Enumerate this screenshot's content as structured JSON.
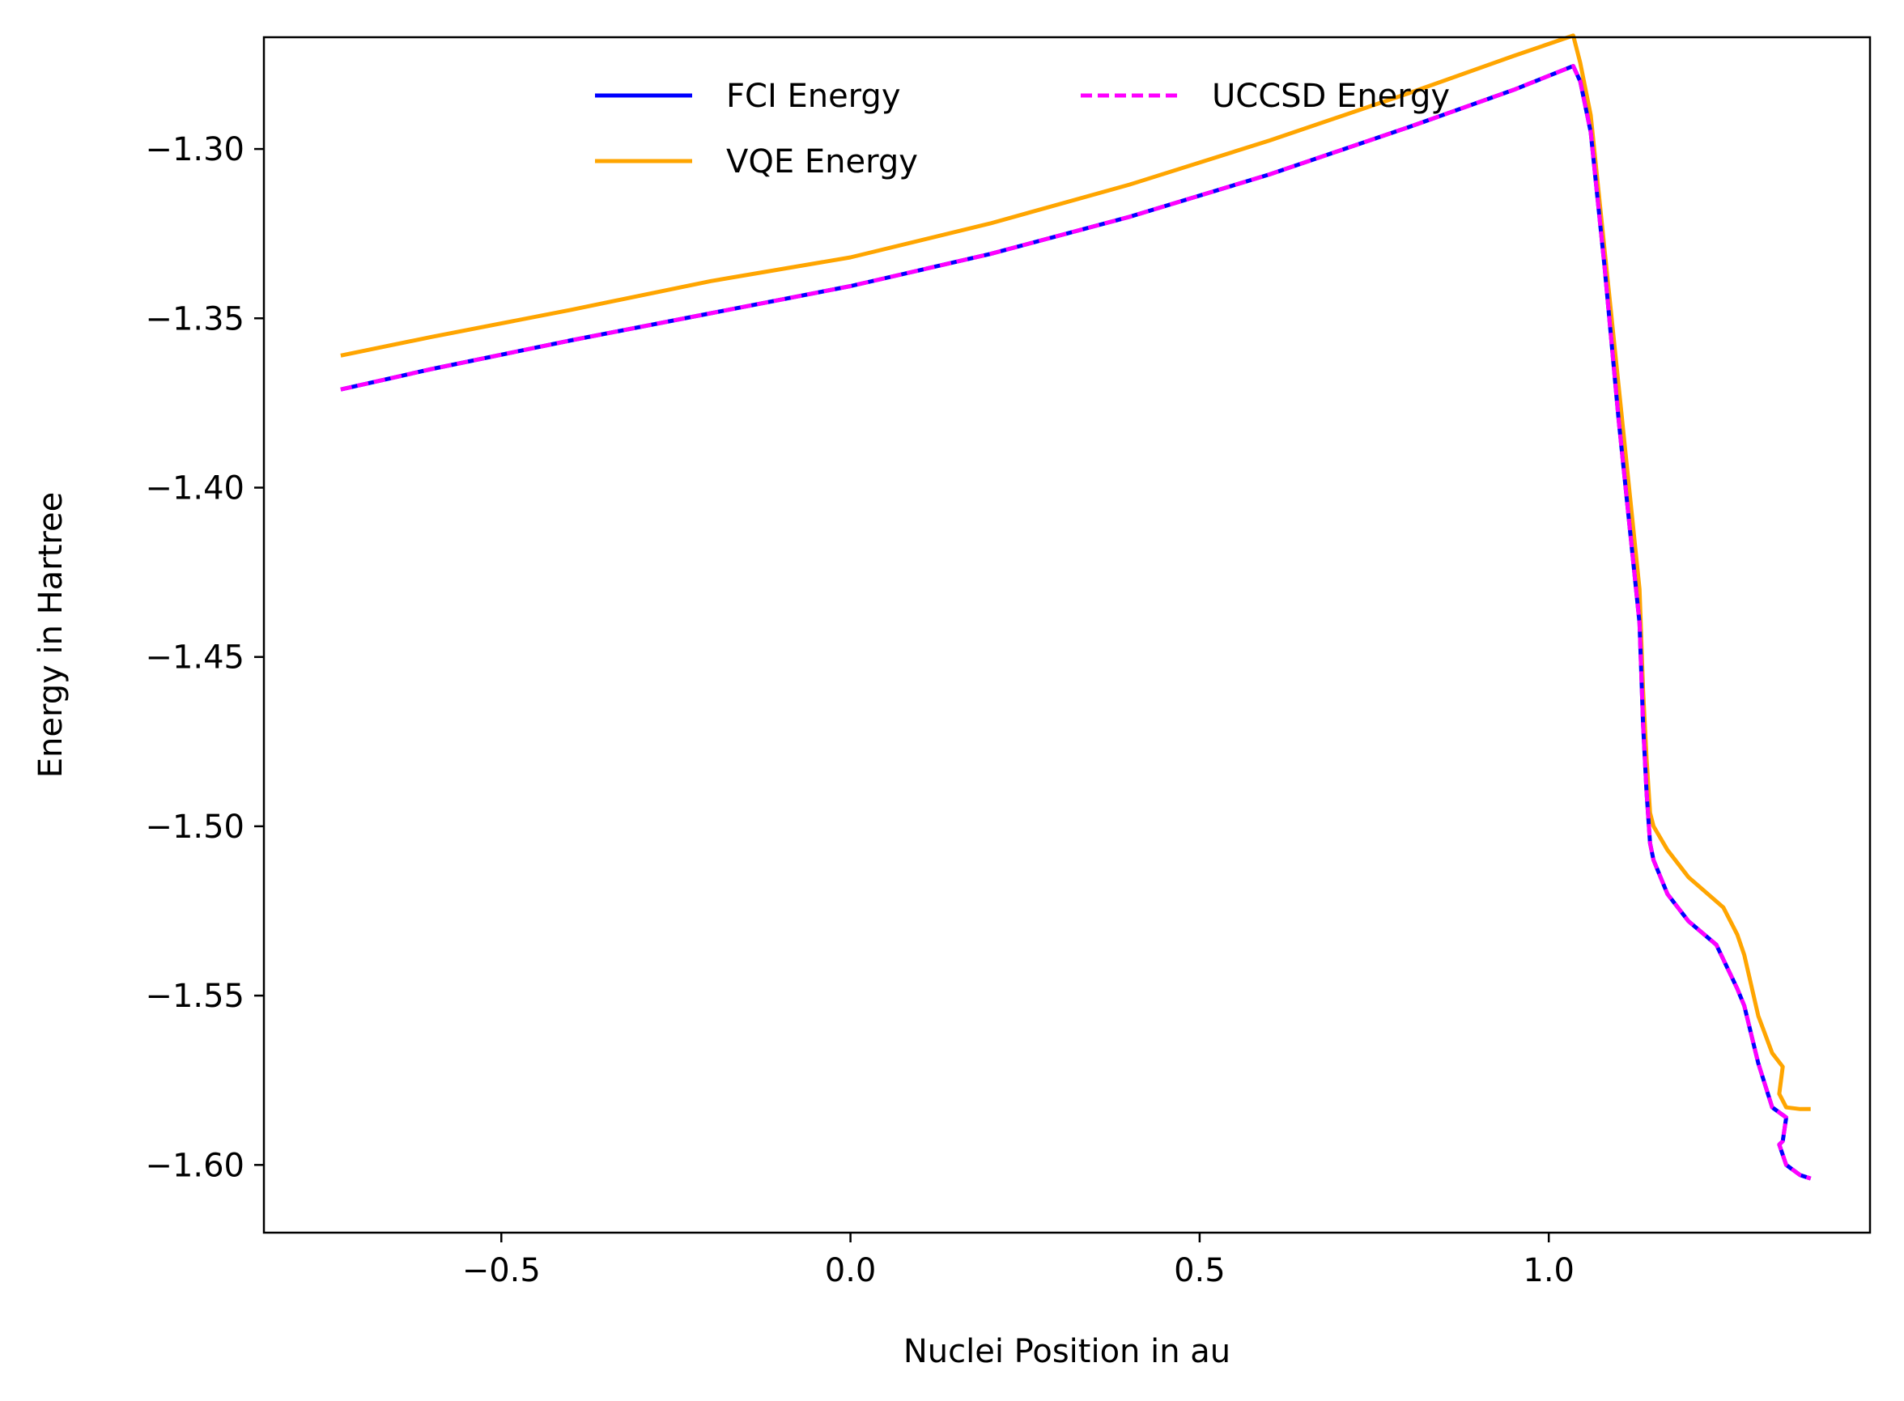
{
  "chart_data": {
    "type": "line",
    "title": "",
    "xlabel": "Nuclei Position in au",
    "ylabel": "Energy in Hartree",
    "xlim": [
      -0.84,
      1.46
    ],
    "ylim": [
      -1.62,
      -1.267
    ],
    "xticks": [
      {
        "value": -0.5,
        "label": "−0.5"
      },
      {
        "value": 0.0,
        "label": "0.0"
      },
      {
        "value": 0.5,
        "label": "0.5"
      },
      {
        "value": 1.0,
        "label": "1.0"
      }
    ],
    "yticks": [
      {
        "value": -1.3,
        "label": "−1.30"
      },
      {
        "value": -1.35,
        "label": "−1.35"
      },
      {
        "value": -1.4,
        "label": "−1.40"
      },
      {
        "value": -1.45,
        "label": "−1.45"
      },
      {
        "value": -1.5,
        "label": "−1.50"
      },
      {
        "value": -1.55,
        "label": "−1.55"
      },
      {
        "value": -1.6,
        "label": "−1.60"
      }
    ],
    "grid": false,
    "legend": "upper-center",
    "series": [
      {
        "name": "FCI Energy",
        "color": "#0000ff",
        "style": "solid",
        "points": [
          [
            -0.73,
            -1.371
          ],
          [
            -0.6,
            -1.365
          ],
          [
            -0.4,
            -1.3565
          ],
          [
            -0.2,
            -1.3485
          ],
          [
            0.0,
            -1.3405
          ],
          [
            0.2,
            -1.331
          ],
          [
            0.4,
            -1.32
          ],
          [
            0.6,
            -1.3075
          ],
          [
            0.8,
            -1.2935
          ],
          [
            0.95,
            -1.2825
          ],
          [
            1.035,
            -1.2755
          ],
          [
            1.045,
            -1.28
          ],
          [
            1.06,
            -1.295
          ],
          [
            1.08,
            -1.335
          ],
          [
            1.1,
            -1.38
          ],
          [
            1.12,
            -1.42
          ],
          [
            1.13,
            -1.44
          ],
          [
            1.135,
            -1.47
          ],
          [
            1.14,
            -1.49
          ],
          [
            1.145,
            -1.505
          ],
          [
            1.15,
            -1.51
          ],
          [
            1.17,
            -1.52
          ],
          [
            1.2,
            -1.528
          ],
          [
            1.24,
            -1.535
          ],
          [
            1.27,
            -1.548
          ],
          [
            1.28,
            -1.553
          ],
          [
            1.3,
            -1.57
          ],
          [
            1.32,
            -1.583
          ],
          [
            1.34,
            -1.586
          ],
          [
            1.335,
            -1.593
          ],
          [
            1.33,
            -1.594
          ],
          [
            1.34,
            -1.6
          ],
          [
            1.36,
            -1.603
          ],
          [
            1.375,
            -1.604
          ]
        ]
      },
      {
        "name": "UCCSD Energy",
        "color": "#ff00ff",
        "style": "dashed",
        "points": [
          [
            -0.73,
            -1.371
          ],
          [
            -0.6,
            -1.365
          ],
          [
            -0.4,
            -1.3565
          ],
          [
            -0.2,
            -1.3485
          ],
          [
            0.0,
            -1.3405
          ],
          [
            0.2,
            -1.331
          ],
          [
            0.4,
            -1.32
          ],
          [
            0.6,
            -1.3075
          ],
          [
            0.8,
            -1.2935
          ],
          [
            0.95,
            -1.2825
          ],
          [
            1.035,
            -1.2755
          ],
          [
            1.045,
            -1.28
          ],
          [
            1.06,
            -1.295
          ],
          [
            1.08,
            -1.335
          ],
          [
            1.1,
            -1.38
          ],
          [
            1.12,
            -1.42
          ],
          [
            1.13,
            -1.44
          ],
          [
            1.135,
            -1.47
          ],
          [
            1.14,
            -1.49
          ],
          [
            1.145,
            -1.505
          ],
          [
            1.15,
            -1.51
          ],
          [
            1.17,
            -1.52
          ],
          [
            1.2,
            -1.528
          ],
          [
            1.24,
            -1.535
          ],
          [
            1.27,
            -1.548
          ],
          [
            1.28,
            -1.553
          ],
          [
            1.3,
            -1.57
          ],
          [
            1.32,
            -1.583
          ],
          [
            1.34,
            -1.586
          ],
          [
            1.335,
            -1.593
          ],
          [
            1.33,
            -1.594
          ],
          [
            1.34,
            -1.6
          ],
          [
            1.36,
            -1.603
          ],
          [
            1.375,
            -1.604
          ]
        ]
      },
      {
        "name": "VQE Energy",
        "color": "#ffa500",
        "style": "solid",
        "points": [
          [
            -0.73,
            -1.361
          ],
          [
            -0.6,
            -1.3555
          ],
          [
            -0.4,
            -1.3475
          ],
          [
            -0.2,
            -1.339
          ],
          [
            0.0,
            -1.332
          ],
          [
            0.2,
            -1.322
          ],
          [
            0.4,
            -1.3105
          ],
          [
            0.6,
            -1.2975
          ],
          [
            0.8,
            -1.2835
          ],
          [
            0.95,
            -1.2725
          ],
          [
            1.035,
            -1.2665
          ],
          [
            1.045,
            -1.2745
          ],
          [
            1.06,
            -1.29
          ],
          [
            1.08,
            -1.33
          ],
          [
            1.1,
            -1.37
          ],
          [
            1.12,
            -1.41
          ],
          [
            1.13,
            -1.43
          ],
          [
            1.135,
            -1.46
          ],
          [
            1.14,
            -1.48
          ],
          [
            1.145,
            -1.496
          ],
          [
            1.15,
            -1.5
          ],
          [
            1.17,
            -1.507
          ],
          [
            1.2,
            -1.515
          ],
          [
            1.25,
            -1.524
          ],
          [
            1.27,
            -1.532
          ],
          [
            1.28,
            -1.538
          ],
          [
            1.3,
            -1.556
          ],
          [
            1.32,
            -1.567
          ],
          [
            1.335,
            -1.571
          ],
          [
            1.33,
            -1.579
          ],
          [
            1.34,
            -1.583
          ],
          [
            1.36,
            -1.5835
          ],
          [
            1.375,
            -1.5835
          ]
        ]
      }
    ]
  }
}
